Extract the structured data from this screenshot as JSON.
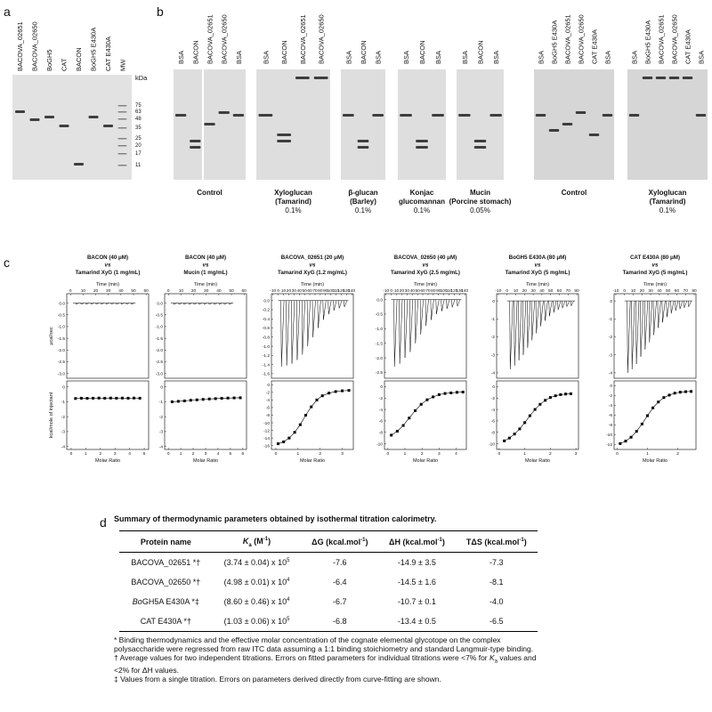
{
  "panel_a": {
    "label": "a",
    "lanes": [
      "BACOVA_02651",
      "BACOVA_02650",
      "BoGH5",
      "CAT",
      "BACON",
      "BoGH5 E430A",
      "CAT E430A",
      "MW"
    ],
    "mw_unit": "kDa",
    "mw_markers": [
      75,
      63,
      48,
      35,
      25,
      20,
      17,
      11
    ]
  },
  "panel_b": {
    "label": "b",
    "groups": [
      {
        "lanes": [
          "BSA",
          "BACON",
          "BACOVA_02651",
          "BACOVA_02650",
          "BSA"
        ],
        "caption": [
          "Control"
        ]
      },
      {
        "lanes": [
          "BSA",
          "BACON",
          "BACOVA_02651",
          "BACOVA_02650"
        ],
        "caption": [
          "Xyloglucan",
          "(Tamarind)"
        ],
        "percent": "0.1%"
      },
      {
        "lanes": [
          "BSA",
          "BACON",
          "BSA"
        ],
        "caption": [
          "β-glucan",
          "(Barley)"
        ],
        "percent": "0.1%"
      },
      {
        "lanes": [
          "BSA",
          "BACON",
          "BSA"
        ],
        "caption": [
          "Konjac",
          "glucomannan"
        ],
        "percent": "0.1%"
      },
      {
        "lanes": [
          "BSA",
          "BACON",
          "BSA"
        ],
        "caption": [
          "Mucin",
          "(Porcine stomach)"
        ],
        "percent": "0.05%"
      },
      {
        "lanes": [
          "BSA",
          "BoGH5 E430A",
          "BACOVA_02651",
          "BACOVA_02650",
          "CAT E430A",
          "BSA"
        ],
        "caption": [
          "Control"
        ]
      },
      {
        "lanes": [
          "BSA",
          "BoGH5 E430A",
          "BACOVA_02651",
          "BACOVA_02650",
          "CAT E430A",
          "BSA"
        ],
        "caption": [
          "Xyloglucan",
          "(Tamarind)"
        ],
        "percent": "0.1%"
      }
    ]
  },
  "panel_c": {
    "label": "c",
    "plots": [
      {
        "title": [
          "BACON (40 μM)",
          "vs",
          "Tamarind XyG (1 mg/mL)"
        ],
        "top": {
          "xlabel": "Time (min)",
          "ylabel": "μcal/sec",
          "xlim": [
            -3,
            62
          ],
          "xticks": [
            0,
            10,
            20,
            30,
            40,
            50,
            60
          ],
          "ylim": [
            -3.2,
            0.4
          ],
          "yticks": [
            {
              "value": 0,
              "label": "0.0"
            },
            -0.5,
            {
              "value": -1,
              "label": "-1.0"
            },
            -1.5,
            {
              "value": -2,
              "label": "-2.0"
            },
            -2.5,
            {
              "value": -3,
              "label": "-3.0"
            }
          ],
          "x": [
            4,
            8,
            12,
            16,
            20,
            24,
            28,
            32,
            36,
            40,
            44,
            48
          ],
          "y": [
            -0.05,
            -0.05,
            -0.05,
            -0.05,
            -0.05,
            -0.05,
            -0.05,
            -0.05,
            -0.05,
            -0.05,
            -0.05,
            -0.05
          ]
        },
        "bottom": {
          "xlabel": "Molar Ratio",
          "ylabel": "kcal/mole of injectant",
          "xlim": [
            -0.3,
            5.3
          ],
          "xticks": [
            0,
            1,
            2,
            3,
            4,
            5
          ],
          "ylim": [
            -4.2,
            0.4
          ],
          "yticks": [
            0,
            -1,
            -2,
            -3,
            -4
          ],
          "x": [
            0.3,
            0.7,
            1.1,
            1.5,
            1.9,
            2.3,
            2.7,
            3.1,
            3.5,
            3.9,
            4.3,
            4.7
          ],
          "y": [
            -0.78,
            -0.76,
            -0.77,
            -0.76,
            -0.75,
            -0.76,
            -0.75,
            -0.76,
            -0.75,
            -0.76,
            -0.75,
            -0.76
          ]
        }
      },
      {
        "title": [
          "BACON (40 μM)",
          "vs",
          "Mucin (1 mg/mL)"
        ],
        "top": {
          "xlabel": "Time (min)",
          "xlim": [
            -3,
            62
          ],
          "xticks": [
            0,
            10,
            20,
            30,
            40,
            50,
            60
          ],
          "ylim": [
            -3.2,
            0.4
          ],
          "yticks": [
            {
              "value": 0,
              "label": "0.0"
            },
            -0.5,
            {
              "value": -1,
              "label": "-1.0"
            },
            -1.5,
            {
              "value": -2,
              "label": "-2.0"
            },
            -2.5,
            {
              "value": -3,
              "label": "-3.0"
            }
          ],
          "x": [
            4,
            8,
            12,
            16,
            20,
            24,
            28,
            32,
            36,
            40,
            44,
            48
          ],
          "y": [
            -0.06,
            -0.06,
            -0.06,
            -0.06,
            -0.06,
            -0.06,
            -0.06,
            -0.06,
            -0.06,
            -0.06,
            -0.06,
            -0.06
          ]
        },
        "bottom": {
          "xlabel": "Molar Ratio",
          "xlim": [
            -0.3,
            6.3
          ],
          "xticks": [
            0,
            1,
            2,
            3,
            4,
            5,
            6
          ],
          "ylim": [
            -4.2,
            0.4
          ],
          "yticks": [
            0,
            -1,
            -2,
            -3,
            -4
          ],
          "x": [
            0.3,
            0.8,
            1.3,
            1.8,
            2.3,
            2.8,
            3.3,
            3.8,
            4.3,
            4.8,
            5.3,
            5.8
          ],
          "y": [
            -1.0,
            -0.97,
            -0.94,
            -0.9,
            -0.87,
            -0.84,
            -0.81,
            -0.79,
            -0.77,
            -0.75,
            -0.74,
            -0.73
          ]
        }
      },
      {
        "title": [
          "BACOVA_02651 (20 μM)",
          "vs",
          "Tamarind XyG (1.2 mg/mL)"
        ],
        "top": {
          "xlabel": "Time (min)",
          "xlim": [
            -13,
            143
          ],
          "xticks": [
            -10,
            0,
            10,
            20,
            30,
            40,
            50,
            60,
            70,
            80,
            90,
            100,
            110,
            120,
            130,
            140
          ],
          "ylim": [
            -1.7,
            0.15
          ],
          "yticks": [
            {
              "value": 0,
              "label": "0.0"
            },
            -0.2,
            -0.4,
            -0.6,
            -0.8,
            {
              "value": -1,
              "label": "-1.0"
            },
            -1.2,
            -1.4,
            -1.6
          ],
          "x": [
            5,
            15,
            25,
            35,
            45,
            55,
            65,
            75,
            85,
            95,
            105,
            115,
            125
          ],
          "y": [
            -1.45,
            -1.42,
            -1.38,
            -1.3,
            -1.18,
            -1.0,
            -0.8,
            -0.6,
            -0.42,
            -0.3,
            -0.22,
            -0.17,
            -0.14
          ]
        },
        "bottom": {
          "xlabel": "Molar Ratio",
          "xlim": [
            -0.2,
            3.5
          ],
          "xticks": [
            0,
            1,
            2,
            3
          ],
          "ylim": [
            -17,
            1
          ],
          "yticks": [
            0,
            -2,
            -4,
            -6,
            -8,
            -10,
            -12,
            -14,
            -16
          ],
          "x": [
            0.1,
            0.35,
            0.6,
            0.85,
            1.1,
            1.35,
            1.6,
            1.85,
            2.1,
            2.4,
            2.7,
            3.0,
            3.3
          ],
          "y": [
            -15.5,
            -15,
            -14,
            -12.5,
            -10.5,
            -8,
            -5.8,
            -4,
            -2.9,
            -2.2,
            -1.8,
            -1.6,
            -1.5
          ]
        }
      },
      {
        "title": [
          "BACOVA_02650 (40 μM)",
          "vs",
          "Tamarind XyG (2.5 mg/mL)"
        ],
        "top": {
          "xlabel": "Time (min)",
          "xlim": [
            -13,
            143
          ],
          "xticks": [
            -10,
            0,
            10,
            20,
            30,
            40,
            50,
            60,
            70,
            80,
            90,
            100,
            110,
            120,
            130,
            140
          ],
          "ylim": [
            -2.7,
            0.2
          ],
          "yticks": [
            {
              "value": 0,
              "label": "0.0"
            },
            -0.5,
            {
              "value": -1,
              "label": "-1.0"
            },
            -1.5,
            {
              "value": -2,
              "label": "-2.0"
            },
            -2.5
          ],
          "x": [
            5,
            15,
            25,
            35,
            45,
            55,
            65,
            75,
            85,
            95,
            105,
            115,
            125
          ],
          "y": [
            -2.3,
            -2.2,
            -2.0,
            -1.8,
            -1.5,
            -1.2,
            -0.9,
            -0.7,
            -0.5,
            -0.4,
            -0.32,
            -0.27,
            -0.23
          ]
        },
        "bottom": {
          "xlabel": "Molar Ratio",
          "xlim": [
            -0.2,
            4.6
          ],
          "xticks": [
            0,
            1,
            2,
            3,
            4
          ],
          "ylim": [
            -11,
            1
          ],
          "yticks": [
            0,
            -2,
            -4,
            -6,
            -8,
            -10
          ],
          "x": [
            0.2,
            0.55,
            0.9,
            1.25,
            1.6,
            1.95,
            2.3,
            2.65,
            3.0,
            3.35,
            3.7,
            4.05,
            4.4
          ],
          "y": [
            -8.5,
            -7.8,
            -6.8,
            -5.5,
            -4.2,
            -3.1,
            -2.3,
            -1.8,
            -1.4,
            -1.2,
            -1.1,
            -1.0,
            -0.95
          ]
        }
      },
      {
        "title": [
          "BoGH5 E430A (80 μM)",
          "vs",
          "Tamarind XyG (5 mg/mL)"
        ],
        "top": {
          "xlabel": "Time (min)",
          "xlim": [
            -12,
            82
          ],
          "xticks": [
            -10,
            0,
            10,
            20,
            30,
            40,
            50,
            60,
            70,
            80
          ],
          "ylim": [
            -4.3,
            0.4
          ],
          "yticks": [
            0,
            -1,
            -2,
            -3,
            -4
          ],
          "x": [
            3,
            8,
            13,
            18,
            23,
            28,
            33,
            38,
            43,
            48,
            53,
            58,
            63,
            68,
            73
          ],
          "y": [
            -3.8,
            -3.6,
            -3.3,
            -3.0,
            -2.6,
            -2.2,
            -1.8,
            -1.4,
            -1.1,
            -0.85,
            -0.65,
            -0.5,
            -0.4,
            -0.32,
            -0.28
          ]
        },
        "bottom": {
          "xlabel": "Molar Ratio",
          "xlim": [
            -0.1,
            3.1
          ],
          "xticks": [
            0,
            1,
            2,
            3
          ],
          "ylim": [
            -11,
            1
          ],
          "yticks": [
            0,
            -2,
            -4,
            -6,
            -8,
            -10
          ],
          "x": [
            0.2,
            0.4,
            0.6,
            0.8,
            1.0,
            1.2,
            1.4,
            1.6,
            1.8,
            2.0,
            2.2,
            2.4,
            2.6,
            2.8
          ],
          "y": [
            -9.5,
            -9.0,
            -8.3,
            -7.4,
            -6.3,
            -5.1,
            -4.0,
            -3.1,
            -2.4,
            -1.9,
            -1.6,
            -1.4,
            -1.3,
            -1.25
          ]
        }
      },
      {
        "title": [
          "CAT E430A (80 μM)",
          "vs",
          "Tamarind XyG (5 mg/mL)"
        ],
        "top": {
          "xlabel": "Time (min)",
          "xlim": [
            -12,
            82
          ],
          "xticks": [
            -10,
            0,
            10,
            20,
            30,
            40,
            50,
            60,
            70,
            80
          ],
          "ylim": [
            -4.3,
            0.4
          ],
          "yticks": [
            0,
            -1,
            -2,
            -3,
            -4
          ],
          "x": [
            3,
            8,
            13,
            18,
            23,
            28,
            33,
            38,
            43,
            48,
            53,
            58,
            63,
            68,
            73
          ],
          "y": [
            -4.0,
            -3.8,
            -3.5,
            -3.1,
            -2.7,
            -2.3,
            -1.9,
            -1.5,
            -1.2,
            -0.9,
            -0.7,
            -0.55,
            -0.45,
            -0.38,
            -0.33
          ]
        },
        "bottom": {
          "xlabel": "Molar Ratio",
          "xlim": [
            -0.1,
            2.6
          ],
          "xticks": [
            0,
            1,
            2
          ],
          "ylim": [
            -13,
            1
          ],
          "yticks": [
            0,
            -2,
            -4,
            -6,
            -8,
            -10,
            -12
          ],
          "x": [
            0.1,
            0.28,
            0.46,
            0.64,
            0.82,
            1.0,
            1.18,
            1.36,
            1.54,
            1.72,
            1.9,
            2.08,
            2.26,
            2.44
          ],
          "y": [
            -11.8,
            -11.3,
            -10.5,
            -9.3,
            -7.8,
            -6.1,
            -4.5,
            -3.3,
            -2.4,
            -1.9,
            -1.5,
            -1.3,
            -1.2,
            -1.15
          ]
        }
      }
    ]
  },
  "panel_d": {
    "label": "d",
    "title": "Summary of thermodynamic parameters obtained by isothermal titration calorimetry.",
    "header": [
      [
        "Protein name"
      ],
      [
        {
          "text": "K",
          "style": "italic"
        },
        {
          "text": "a",
          "style": "sub"
        },
        " (M",
        {
          "text": "-1",
          "style": "sup"
        },
        ")"
      ],
      [
        "ΔG (kcal.mol",
        {
          "text": "-1",
          "style": "sup"
        },
        ")"
      ],
      [
        "ΔH (kcal.mol",
        {
          "text": "-1",
          "style": "sup"
        },
        ")"
      ],
      [
        "TΔS (kcal.mol",
        {
          "text": "-1",
          "style": "sup"
        },
        ")"
      ]
    ],
    "rows": [
      [
        [
          "BACOVA_02651 *†"
        ],
        [
          "(3.74 ± 0.04) x 10",
          {
            "text": "5",
            "style": "sup"
          }
        ],
        [
          -7.6
        ],
        [
          "-14.9 ± 3.5"
        ],
        [
          -7.3
        ]
      ],
      [
        [
          "BACOVA_02650 *†"
        ],
        [
          "(4.98 ± 0.01) x 10",
          {
            "text": "4",
            "style": "sup"
          }
        ],
        [
          -6.4
        ],
        [
          "-14.5 ± 1.6"
        ],
        [
          -8.1
        ]
      ],
      [
        [
          {
            "text": "Bo",
            "style": "italic"
          },
          "GH5A E430A *‡"
        ],
        [
          "(8.60 ± 0.46) x 10",
          {
            "text": "4",
            "style": "sup"
          }
        ],
        [
          -6.7
        ],
        [
          "-10.7 ± 0.1"
        ],
        [
          "-4.0"
        ]
      ],
      [
        [
          "CAT E430A *†"
        ],
        [
          "(1.03 ± 0.06) x 10",
          {
            "text": "5",
            "style": "sup"
          }
        ],
        [
          -6.8
        ],
        [
          "-13.4 ± 0.5"
        ],
        [
          -6.5
        ]
      ]
    ],
    "footnotes": [
      [
        "* Binding thermodynamics and the effective molar concentration of the cognate elemental glycotope on the complex polysaccharide were regressed from raw ITC data assuming a 1:1 binding stoichiometry and standard Langmuir-type binding."
      ],
      [
        "† Average values for two independent titrations. Errors on fitted parameters for individual titrations were <7% for ",
        {
          "text": "K",
          "style": "italic"
        },
        {
          "text": "a",
          "style": "sub"
        },
        " values and <2% for ΔH values."
      ],
      [
        "‡ Values from a single titration.  Errors on parameters derived directly from curve-fitting are shown."
      ]
    ]
  }
}
